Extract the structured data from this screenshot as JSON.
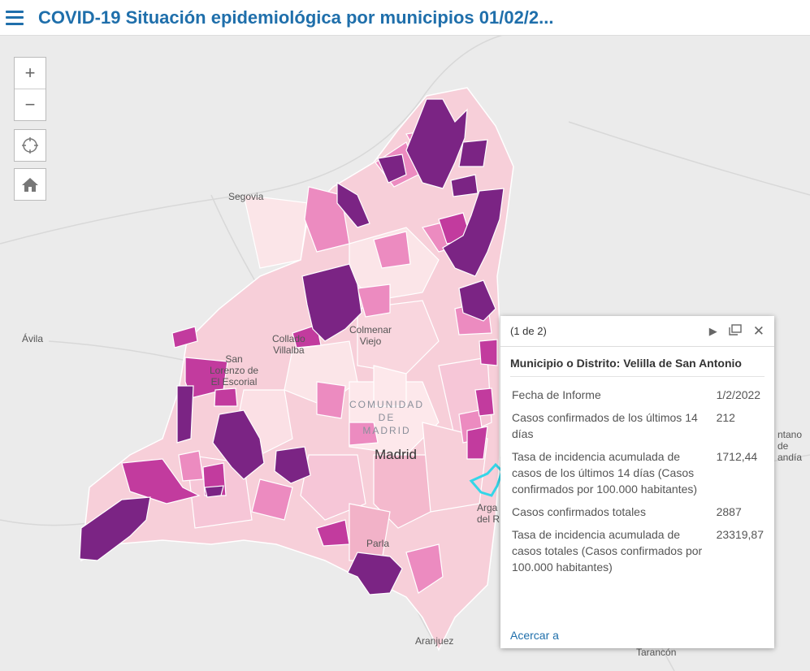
{
  "header": {
    "title": "COVID-19 Situación epidemiológica por municipios 01/02/2..."
  },
  "map": {
    "places": {
      "segovia": "Segovia",
      "avila": "Ávila",
      "collado": "Collado\nVillalba",
      "colmenar": "Colmenar\nViejo",
      "san_lorenzo": "San\nLorenzo de\nEl Escorial",
      "madrid": "Madrid",
      "parla": "Parla",
      "aranjuez": "Aranjuez",
      "tarancon": "Tarancón",
      "arganda": "Arga\ndel R",
      "edge_right": "ntano\nde\nandía"
    },
    "region_label": "COMUNIDAD\nDE\nMADRID",
    "colors": {
      "dark": "#7b2484",
      "magenta": "#c23b9e",
      "pink": "#ec8bc0",
      "light": "#f6c6d7",
      "pale": "#fbe5e8",
      "highlight": "#34d6e8"
    }
  },
  "controls": {
    "zoom_in": "+",
    "zoom_out": "−"
  },
  "popup": {
    "page": "(1 de 2)",
    "title": "Municipio o Distrito: Velilla de San Antonio",
    "rows": [
      {
        "label": "Fecha de Informe",
        "value": "1/2/2022"
      },
      {
        "label": "Casos confirmados de los últimos 14 días",
        "value": "212"
      },
      {
        "label": "Tasa de incidencia acumulada de casos de los últimos 14 días (Casos confirmados por 100.000 habitantes)",
        "value": "1712,44"
      },
      {
        "label": "Casos confirmados totales",
        "value": "2887"
      },
      {
        "label": "Tasa de incidencia acumulada de casos totales (Casos confirmados por 100.000 habitantes)",
        "value": "23319,87"
      }
    ],
    "zoom_link": "Acercar a"
  }
}
